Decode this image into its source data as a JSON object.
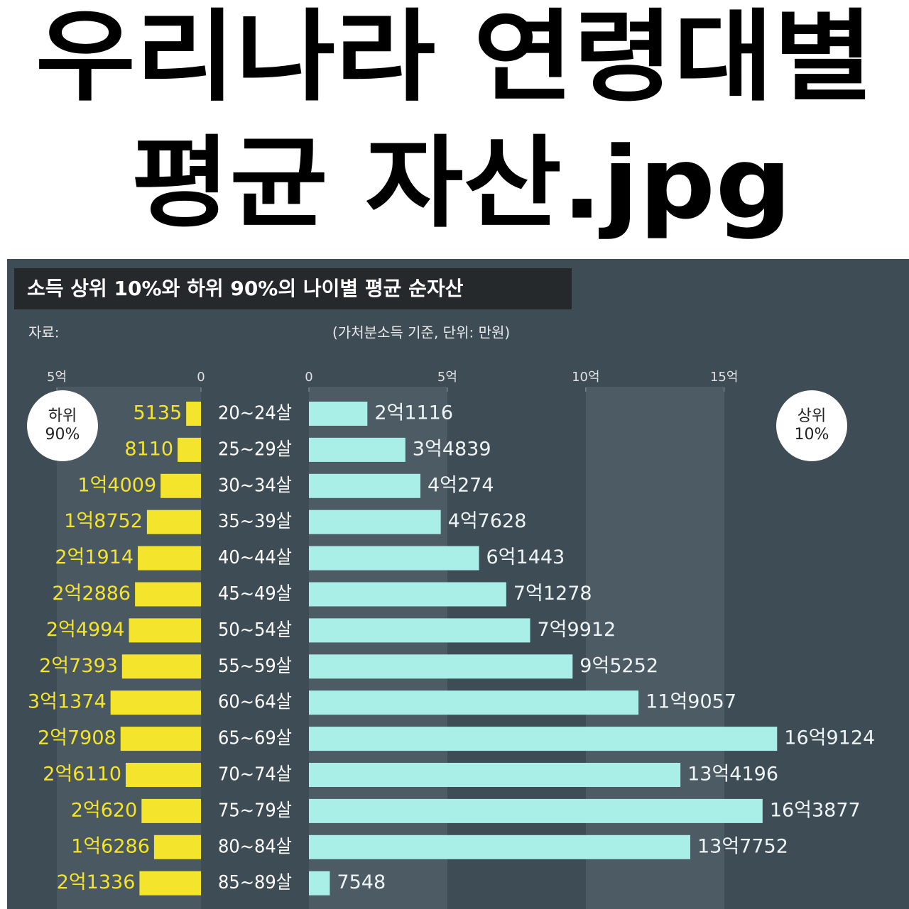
{
  "chart_data": {
    "type": "bar",
    "title_lines": [
      "우리나라 연령대별",
      "평균 자산.jpg"
    ],
    "subtitle": "소득 상위 10%와 하위 90%의 나이별 평균 순자산",
    "source_label": "자료:",
    "note": "(가처분소득 기준, 단위: 만원)",
    "categories": [
      "20~24살",
      "25~29살",
      "30~34살",
      "35~39살",
      "40~44살",
      "45~49살",
      "50~54살",
      "55~59살",
      "60~64살",
      "65~69살",
      "70~74살",
      "75~79살",
      "80~84살",
      "85~89살"
    ],
    "series": [
      {
        "name": "하위 90%",
        "color": "#f4e42b",
        "values": [
          5135,
          8110,
          14009,
          18752,
          21914,
          22886,
          24994,
          27393,
          31374,
          27908,
          26110,
          20620,
          16286,
          21336
        ],
        "value_labels": [
          "5135",
          "8110",
          "1억4009",
          "1억8752",
          "2억1914",
          "2억2886",
          "2억4994",
          "2억7393",
          "3억1374",
          "2억7908",
          "2억6110",
          "2억620",
          "1억6286",
          "2억1336"
        ],
        "xlim": [
          0,
          68000
        ],
        "xticks": [
          {
            "value": 50000,
            "label": "5억"
          },
          0
        ]
      },
      {
        "name": "상위 10%",
        "color": "#a9efe8",
        "values": [
          21116,
          34839,
          40274,
          47628,
          61443,
          71278,
          79912,
          95252,
          119057,
          169124,
          134196,
          163877,
          137752,
          7548
        ],
        "value_labels": [
          "2억1116",
          "3억4839",
          "4억274",
          "4억7628",
          "6억1443",
          "7억1278",
          "7억9912",
          "9억5252",
          "11억9057",
          "16억9124",
          "13억4196",
          "16억3877",
          "13억7752",
          "7548"
        ],
        "xlim": [
          0,
          216000
        ],
        "xticks": [
          0,
          {
            "value": 50000,
            "label": "5억"
          },
          {
            "value": 100000,
            "label": "10억"
          },
          {
            "value": 150000,
            "label": "15억"
          }
        ]
      }
    ]
  }
}
